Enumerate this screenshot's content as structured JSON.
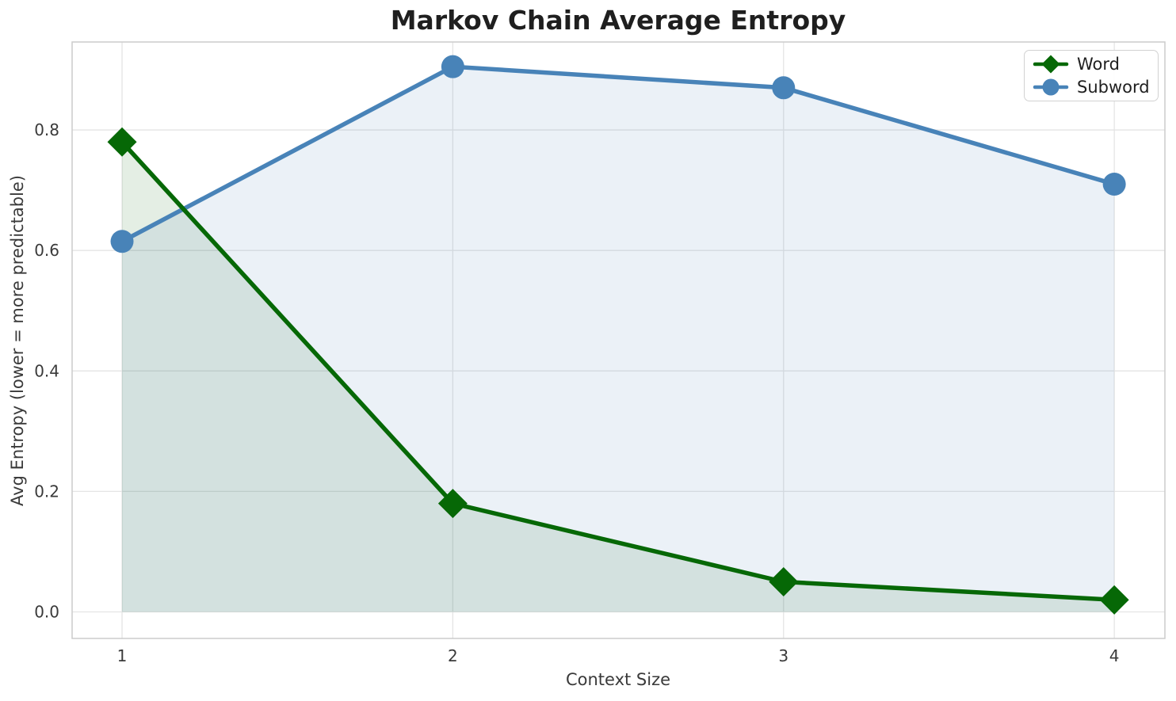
{
  "chart_data": {
    "type": "line",
    "title": "Markov Chain Average Entropy",
    "xlabel": "Context Size",
    "ylabel": "Avg Entropy (lower = more predictable)",
    "x": [
      1,
      2,
      3,
      4
    ],
    "series": [
      {
        "name": "Word",
        "values": [
          0.78,
          0.18,
          0.05,
          0.02
        ],
        "color": "#066806",
        "marker": "diamond",
        "area_fill": true
      },
      {
        "name": "Subword",
        "values": [
          0.615,
          0.905,
          0.87,
          0.71
        ],
        "color": "#4883b8",
        "marker": "circle",
        "area_fill": true
      }
    ],
    "xticks": [
      {
        "value": 1,
        "label": "1"
      },
      {
        "value": 2,
        "label": "2"
      },
      {
        "value": 3,
        "label": "3"
      },
      {
        "value": 4,
        "label": "4"
      }
    ],
    "yticks": [
      {
        "value": 0.0,
        "label": "0.0"
      },
      {
        "value": 0.2,
        "label": "0.2"
      },
      {
        "value": 0.4,
        "label": "0.4"
      },
      {
        "value": 0.6,
        "label": "0.6"
      },
      {
        "value": 0.8,
        "label": "0.8"
      }
    ],
    "xlim": [
      0.849,
      4.153
    ],
    "ylim": [
      -0.044,
      0.946
    ],
    "grid": true,
    "legend_position": "upper right",
    "fill_alpha": 0.11,
    "fill_baseline": 0,
    "colors": {
      "grid": "#e4e4e4",
      "spine": "#cccccc",
      "title": "#1f1f1f",
      "text": "#3a3a3a"
    }
  }
}
